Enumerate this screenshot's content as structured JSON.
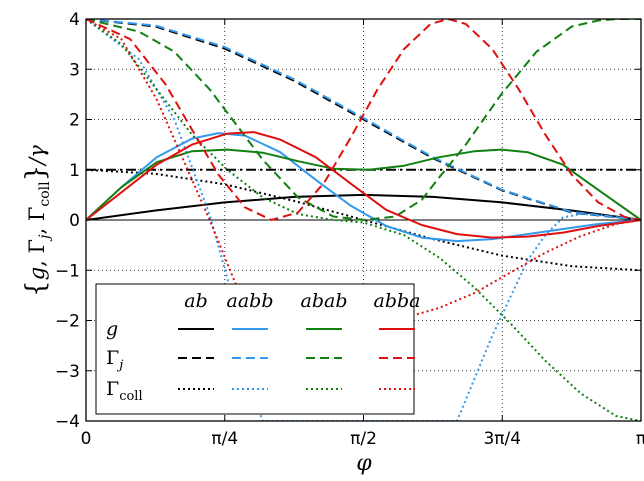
{
  "chart_data": {
    "type": "line",
    "xlabel": "φ",
    "ylabel": "{g, Γj, Γcoll}/γ",
    "ylabel_parts": {
      "open": "{",
      "g": "g",
      "comma": ", ",
      "gamma_j": "Γ",
      "sub_j": "j",
      "gamma_coll": "Γ",
      "sub_coll": "coll",
      "close": "}",
      "slash_gamma": "/γ"
    },
    "xlim": [
      0,
      3.14159265
    ],
    "ylim": [
      -4,
      4
    ],
    "xticks": [
      {
        "value": 0,
        "label": "0"
      },
      {
        "value": 0.78539816,
        "label": "π/4"
      },
      {
        "value": 1.57079633,
        "label": "π/2"
      },
      {
        "value": 2.35619449,
        "label": "3π/4"
      },
      {
        "value": 3.14159265,
        "label": "π"
      }
    ],
    "yticks": [
      {
        "value": 4,
        "label": "4"
      },
      {
        "value": 3,
        "label": "3"
      },
      {
        "value": 2,
        "label": "2"
      },
      {
        "value": 1,
        "label": "1"
      },
      {
        "value": 0,
        "label": "0"
      },
      {
        "value": -1,
        "label": "−1"
      },
      {
        "value": -2,
        "label": "−2"
      },
      {
        "value": -3,
        "label": "−3"
      },
      {
        "value": -4,
        "label": "−4"
      }
    ],
    "grid": true,
    "reference_lines": [
      {
        "y": 1,
        "style": "dash-dot",
        "color": "#000000"
      },
      {
        "y": 0,
        "style": "solid",
        "color": "#000000"
      }
    ],
    "legend": {
      "placement": "lower-left",
      "columns": [
        "ab",
        "aabb",
        "abab",
        "abba"
      ],
      "rows": [
        {
          "label": "g",
          "style": "solid"
        },
        {
          "label": "Γj",
          "symbol": "Γ",
          "sub": "j",
          "style": "dashed"
        },
        {
          "label": "Γcoll",
          "symbol": "Γ",
          "sub": "coll",
          "style": "dotted"
        }
      ]
    },
    "colors": {
      "ab": "#000000",
      "aabb": "#3399ee",
      "abab": "#108010",
      "abba": "#e01010"
    },
    "series": [
      {
        "name": "g ab",
        "color": "#000000",
        "style": "solid",
        "x": [
          0,
          0.3927,
          0.7854,
          1.1781,
          1.5708,
          1.9635,
          2.3562,
          2.7489,
          3.1416
        ],
        "y": [
          0,
          0.19,
          0.35,
          0.46,
          0.5,
          0.46,
          0.35,
          0.19,
          0
        ]
      },
      {
        "name": "Γj ab",
        "color": "#000000",
        "style": "dashed",
        "x": [
          0,
          0.3927,
          0.7854,
          1.1781,
          1.5708,
          1.9635,
          2.3562,
          2.7489,
          3.1416
        ],
        "y": [
          4,
          3.85,
          3.41,
          2.77,
          2.0,
          1.23,
          0.59,
          0.15,
          0
        ]
      },
      {
        "name": "Γcoll ab",
        "color": "#000000",
        "style": "dotted",
        "x": [
          0,
          0.3927,
          0.7854,
          1.1781,
          1.5708,
          1.9635,
          2.3562,
          2.7489,
          3.1416
        ],
        "y": [
          1,
          0.92,
          0.71,
          0.38,
          0,
          -0.38,
          -0.71,
          -0.92,
          -1
        ]
      },
      {
        "name": "g aabb",
        "color": "#3399ee",
        "style": "solid",
        "x": [
          0,
          0.2,
          0.4,
          0.6,
          0.75,
          0.9,
          1.1,
          1.3,
          1.5,
          1.7,
          1.9,
          2.1,
          2.3,
          2.5,
          2.7,
          2.9,
          3.1416
        ],
        "y": [
          0,
          0.65,
          1.25,
          1.62,
          1.73,
          1.68,
          1.35,
          0.8,
          0.28,
          -0.12,
          -0.35,
          -0.42,
          -0.38,
          -0.28,
          -0.18,
          -0.08,
          0
        ]
      },
      {
        "name": "Γj aabb",
        "color": "#3399ee",
        "style": "dashed",
        "x": [
          0,
          0.3927,
          0.7854,
          1.1781,
          1.5708,
          1.9635,
          2.3562,
          2.7489,
          3.1416
        ],
        "y": [
          4,
          3.87,
          3.44,
          2.8,
          2.03,
          1.25,
          0.6,
          0.16,
          0
        ]
      },
      {
        "name": "Γcoll aabb",
        "color": "#3399ee",
        "style": "dotted",
        "x": [
          0,
          0.3,
          0.5,
          0.7,
          0.85,
          0.95,
          1.0,
          2.1,
          2.3,
          2.5,
          2.6,
          2.7,
          2.8,
          2.9,
          3.0,
          3.1416
        ],
        "y": [
          4,
          3.2,
          2.0,
          0.1,
          -1.8,
          -3.5,
          -4,
          -4,
          -2.3,
          -0.8,
          -0.3,
          0.05,
          0.12,
          0.1,
          0.06,
          0
        ]
      },
      {
        "name": "g abab",
        "color": "#108010",
        "style": "solid",
        "x": [
          0,
          0.2,
          0.4,
          0.6,
          0.8,
          1.0,
          1.2,
          1.4,
          1.6,
          1.8,
          2.0,
          2.2,
          2.35,
          2.5,
          2.7,
          2.9,
          3.1416
        ],
        "y": [
          0,
          0.65,
          1.15,
          1.37,
          1.4,
          1.34,
          1.17,
          1.02,
          1.0,
          1.08,
          1.25,
          1.37,
          1.4,
          1.35,
          1.1,
          0.6,
          0
        ]
      },
      {
        "name": "Γj abab",
        "color": "#108010",
        "style": "dashed",
        "x": [
          0,
          0.3,
          0.5,
          0.7,
          0.85,
          1.0,
          1.2,
          1.4,
          1.57,
          1.75,
          1.9,
          2.0,
          2.15,
          2.35,
          2.55,
          2.75,
          2.9,
          3.0,
          3.1416
        ],
        "y": [
          4,
          3.75,
          3.35,
          2.6,
          1.9,
          1.2,
          0.45,
          0.07,
          0.0,
          0.07,
          0.4,
          0.85,
          1.5,
          2.5,
          3.35,
          3.85,
          3.97,
          4.0,
          4.0
        ]
      },
      {
        "name": "Γcoll abab",
        "color": "#108010",
        "style": "dotted",
        "x": [
          0,
          0.2,
          0.4,
          0.6,
          0.8,
          1.0,
          1.2,
          1.4,
          1.57,
          1.8,
          2.0,
          2.2,
          2.4,
          2.6,
          2.8,
          3.0,
          3.1416
        ],
        "y": [
          4,
          3.5,
          2.6,
          1.7,
          1.0,
          0.45,
          0.12,
          0.0,
          -0.05,
          -0.3,
          -0.75,
          -1.35,
          -2.05,
          -2.8,
          -3.45,
          -3.9,
          -4
        ]
      },
      {
        "name": "g abba",
        "color": "#e01010",
        "style": "solid",
        "x": [
          0,
          0.2,
          0.4,
          0.6,
          0.8,
          0.95,
          1.1,
          1.3,
          1.5,
          1.7,
          1.9,
          2.1,
          2.3,
          2.5,
          2.7,
          2.9,
          3.1416
        ],
        "y": [
          0,
          0.55,
          1.1,
          1.5,
          1.72,
          1.75,
          1.6,
          1.25,
          0.72,
          0.2,
          -0.1,
          -0.28,
          -0.35,
          -0.33,
          -0.25,
          -0.12,
          0
        ]
      },
      {
        "name": "Γj abba",
        "color": "#e01010",
        "style": "dashed",
        "x": [
          0,
          0.25,
          0.45,
          0.6,
          0.75,
          0.9,
          1.05,
          1.2,
          1.35,
          1.5,
          1.65,
          1.8,
          1.95,
          2.05,
          2.15,
          2.3,
          2.45,
          2.6,
          2.75,
          2.9,
          3.05,
          3.1416
        ],
        "y": [
          4,
          3.6,
          2.7,
          1.8,
          0.9,
          0.25,
          0.0,
          0.15,
          0.75,
          1.65,
          2.6,
          3.4,
          3.9,
          4.0,
          3.9,
          3.4,
          2.6,
          1.7,
          0.9,
          0.35,
          0.06,
          0
        ]
      },
      {
        "name": "Γcoll abba",
        "color": "#e01010",
        "style": "dotted",
        "x": [
          0,
          0.2,
          0.4,
          0.55,
          0.7,
          0.85,
          1.0,
          1.15,
          1.3,
          1.45,
          1.6,
          1.8,
          2.0,
          2.2,
          2.4,
          2.6,
          2.8,
          3.0,
          3.1416
        ],
        "y": [
          4,
          3.6,
          2.4,
          1.2,
          0.0,
          -1.3,
          -2.4,
          -2.9,
          -2.7,
          -2.3,
          -2.1,
          -1.95,
          -1.75,
          -1.45,
          -1.05,
          -0.65,
          -0.32,
          -0.08,
          0
        ]
      }
    ]
  }
}
